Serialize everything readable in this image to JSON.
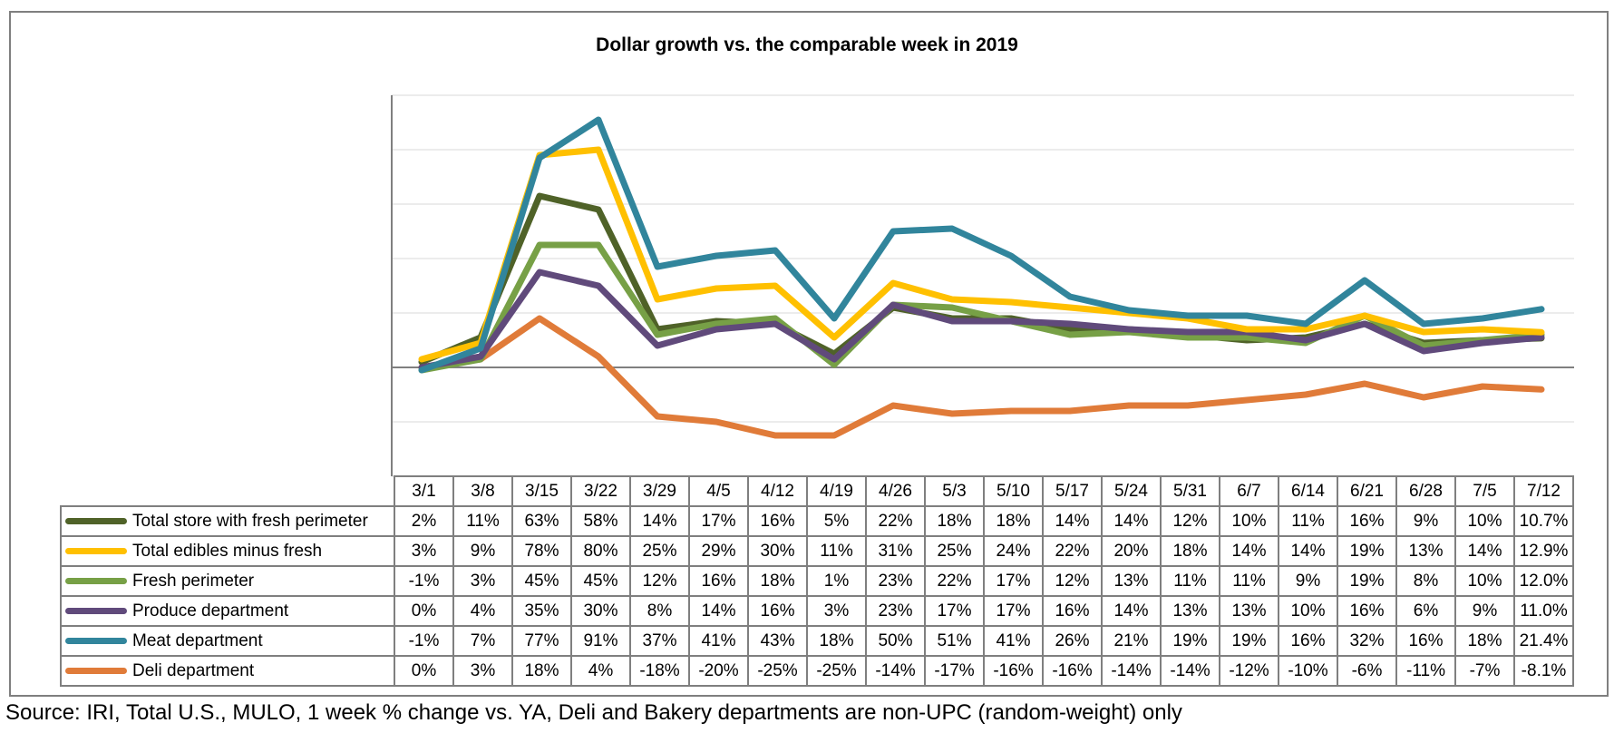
{
  "chart_data": {
    "type": "line",
    "title": "Dollar growth vs. the comparable week in 2019",
    "categories": [
      "3/1",
      "3/8",
      "3/15",
      "3/22",
      "3/29",
      "4/5",
      "4/12",
      "4/19",
      "4/26",
      "5/3",
      "5/10",
      "5/17",
      "5/24",
      "5/31",
      "6/7",
      "6/14",
      "6/21",
      "6/28",
      "7/5",
      "7/12"
    ],
    "ylim": [
      -40,
      100
    ],
    "grid": true,
    "series": [
      {
        "name": "Total store with fresh perimeter",
        "color": "#4f6228",
        "values": [
          2,
          11,
          63,
          58,
          14,
          17,
          16,
          5,
          22,
          18,
          18,
          14,
          14,
          12,
          10,
          11,
          16,
          9,
          10,
          10.7
        ],
        "labels": [
          "2%",
          "11%",
          "63%",
          "58%",
          "14%",
          "17%",
          "16%",
          "5%",
          "22%",
          "18%",
          "18%",
          "14%",
          "14%",
          "12%",
          "10%",
          "11%",
          "16%",
          "9%",
          "10%",
          "10.7%"
        ]
      },
      {
        "name": "Total edibles minus fresh",
        "color": "#ffc000",
        "values": [
          3,
          9,
          78,
          80,
          25,
          29,
          30,
          11,
          31,
          25,
          24,
          22,
          20,
          18,
          14,
          14,
          19,
          13,
          14,
          12.9
        ],
        "labels": [
          "3%",
          "9%",
          "78%",
          "80%",
          "25%",
          "29%",
          "30%",
          "11%",
          "31%",
          "25%",
          "24%",
          "22%",
          "20%",
          "18%",
          "14%",
          "14%",
          "19%",
          "13%",
          "14%",
          "12.9%"
        ]
      },
      {
        "name": "Fresh perimeter",
        "color": "#77a046",
        "values": [
          -1,
          3,
          45,
          45,
          12,
          16,
          18,
          1,
          23,
          22,
          17,
          12,
          13,
          11,
          11,
          9,
          19,
          8,
          10,
          12.0
        ],
        "labels": [
          "-1%",
          "3%",
          "45%",
          "45%",
          "12%",
          "16%",
          "18%",
          "1%",
          "23%",
          "22%",
          "17%",
          "12%",
          "13%",
          "11%",
          "11%",
          "9%",
          "19%",
          "8%",
          "10%",
          "12.0%"
        ]
      },
      {
        "name": "Produce department",
        "color": "#604a7b",
        "values": [
          0,
          4,
          35,
          30,
          8,
          14,
          16,
          3,
          23,
          17,
          17,
          16,
          14,
          13,
          13,
          10,
          16,
          6,
          9,
          11.0
        ],
        "labels": [
          "0%",
          "4%",
          "35%",
          "30%",
          "8%",
          "14%",
          "16%",
          "3%",
          "23%",
          "17%",
          "17%",
          "16%",
          "14%",
          "13%",
          "13%",
          "10%",
          "16%",
          "6%",
          "9%",
          "11.0%"
        ]
      },
      {
        "name": "Meat department",
        "color": "#31859c",
        "values": [
          -1,
          7,
          77,
          91,
          37,
          41,
          43,
          18,
          50,
          51,
          41,
          26,
          21,
          19,
          19,
          16,
          32,
          16,
          18,
          21.4
        ],
        "labels": [
          "-1%",
          "7%",
          "77%",
          "91%",
          "37%",
          "41%",
          "43%",
          "18%",
          "50%",
          "51%",
          "41%",
          "26%",
          "21%",
          "19%",
          "19%",
          "16%",
          "32%",
          "16%",
          "18%",
          "21.4%"
        ]
      },
      {
        "name": "Deli department",
        "color": "#e07b39",
        "values": [
          0,
          3,
          18,
          4,
          -18,
          -20,
          -25,
          -25,
          -14,
          -17,
          -16,
          -16,
          -14,
          -14,
          -12,
          -10,
          -6,
          -11,
          -7,
          -8.1
        ],
        "labels": [
          "0%",
          "3%",
          "18%",
          "4%",
          "-18%",
          "-20%",
          "-25%",
          "-25%",
          "-14%",
          "-17%",
          "-16%",
          "-16%",
          "-14%",
          "-14%",
          "-12%",
          "-10%",
          "-6%",
          "-11%",
          "-7%",
          "-8.1%"
        ]
      }
    ]
  },
  "source_note": "Source: IRI, Total U.S., MULO, 1 week % change vs. YA, Deli and Bakery departments are non-UPC (random-weight) only"
}
